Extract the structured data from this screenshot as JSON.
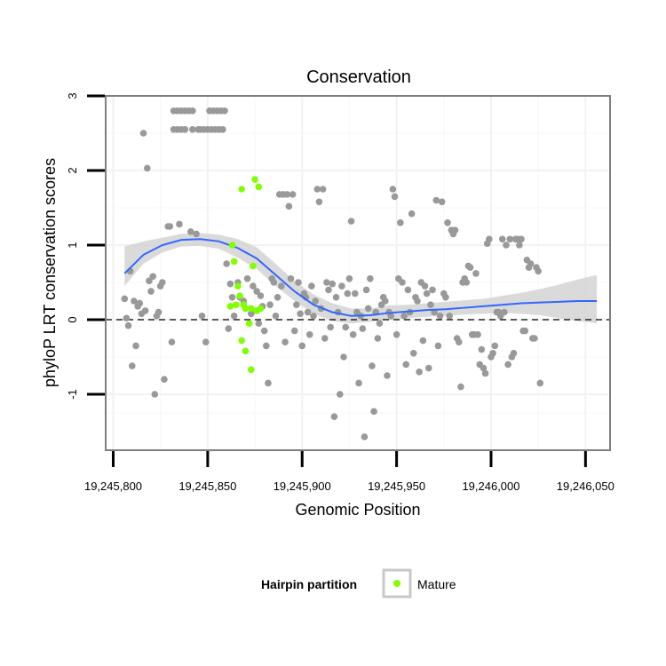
{
  "chart_data": {
    "type": "scatter",
    "title": "Conservation",
    "xlabel": "Genomic Position",
    "ylabel": "phyloP LRT conservation scores",
    "xlim": [
      19245796,
      19246063
    ],
    "ylim": [
      -1.75,
      3
    ],
    "x_ticks": [
      19245800,
      19245850,
      19245900,
      19245950,
      19246000,
      19246050
    ],
    "x_tick_labels": [
      "19,245,800",
      "19,245,850",
      "19,245,900",
      "19,245,950",
      "19,246,000",
      "19,246,050"
    ],
    "y_ticks": [
      -1,
      0,
      1,
      2,
      3
    ],
    "y_tick_labels": [
      "-1",
      "0",
      "1",
      "2",
      "3"
    ],
    "grid": true,
    "reference_line": {
      "y": 0,
      "style": "dashed",
      "color": "#000000"
    },
    "legend": {
      "title": "Hairpin partition",
      "position": "bottom",
      "entries": [
        "Mature"
      ]
    },
    "colors": {
      "other": "#999999",
      "mature": "#80ff00",
      "smooth": "#3366ff",
      "band": "#d3d3d3",
      "panel_border": "#7f7f7f"
    },
    "series": [
      {
        "name": "",
        "group": "other",
        "points": [
          [
            19245806,
            0.28
          ],
          [
            19245807,
            0.02
          ],
          [
            19245808,
            -0.08
          ],
          [
            19245809,
            0.65
          ],
          [
            19245810,
            -0.62
          ],
          [
            19245811,
            0.25
          ],
          [
            19245812,
            -0.35
          ],
          [
            19245813,
            0.18
          ],
          [
            19245814,
            0.22
          ],
          [
            19245815,
            0.08
          ],
          [
            19245816,
            2.5
          ],
          [
            19245817,
            0.12
          ],
          [
            19245818,
            2.03
          ],
          [
            19245819,
            0.52
          ],
          [
            19245820,
            0.38
          ],
          [
            19245821,
            0.58
          ],
          [
            19245822,
            -1.0
          ],
          [
            19245823,
            0.05
          ],
          [
            19245824,
            0.1
          ],
          [
            19245825,
            0.45
          ],
          [
            19245826,
            0.5
          ],
          [
            19245827,
            -0.8
          ],
          [
            19245829,
            1.25
          ],
          [
            19245830,
            1.25
          ],
          [
            19245831,
            -0.3
          ],
          [
            19245832,
            2.8
          ],
          [
            19245832,
            2.55
          ],
          [
            19245834,
            2.8
          ],
          [
            19245834,
            2.55
          ],
          [
            19245835,
            1.28
          ],
          [
            19245836,
            2.8
          ],
          [
            19245836,
            2.55
          ],
          [
            19245838,
            2.8
          ],
          [
            19245838,
            2.55
          ],
          [
            19245840,
            2.8
          ],
          [
            19245841,
            1.18
          ],
          [
            19245842,
            2.8
          ],
          [
            19245842,
            2.55
          ],
          [
            19245844,
            1.15
          ],
          [
            19245845,
            2.55
          ],
          [
            19245846,
            2.55
          ],
          [
            19245847,
            0.05
          ],
          [
            19245848,
            2.55
          ],
          [
            19245849,
            -0.3
          ],
          [
            19245850,
            2.55
          ],
          [
            19245851,
            2.8
          ],
          [
            19245852,
            2.55
          ],
          [
            19245853,
            2.8
          ],
          [
            19245854,
            2.55
          ],
          [
            19245855,
            2.8
          ],
          [
            19245856,
            2.55
          ],
          [
            19245857,
            2.8
          ],
          [
            19245858,
            2.55
          ],
          [
            19245859,
            2.8
          ],
          [
            19245860,
            0.75
          ],
          [
            19245861,
            -0.12
          ],
          [
            19245862,
            0.48
          ],
          [
            19245863,
            0.3
          ],
          [
            19245864,
            0.05
          ],
          [
            19245866,
            0.5
          ],
          [
            19245867,
            0.3
          ],
          [
            19245869,
            0.25
          ],
          [
            19245871,
            0.55
          ],
          [
            19245873,
            0.08
          ],
          [
            19245874,
            0.45
          ],
          [
            19245876,
            0.38
          ],
          [
            19245877,
            -0.05
          ],
          [
            19245878,
            0.32
          ],
          [
            19245879,
            0.18
          ],
          [
            19245880,
            -0.15
          ],
          [
            19245881,
            -0.35
          ],
          [
            19245882,
            -0.85
          ],
          [
            19245883,
            0.2
          ],
          [
            19245884,
            0.55
          ],
          [
            19245885,
            0.5
          ],
          [
            19245886,
            0.05
          ],
          [
            19245887,
            0.3
          ],
          [
            19245888,
            1.68
          ],
          [
            19245889,
            0.45
          ],
          [
            19245890,
            1.68
          ],
          [
            19245891,
            -0.3
          ],
          [
            19245892,
            1.68
          ],
          [
            19245893,
            1.52
          ],
          [
            19245894,
            0.55
          ],
          [
            19245895,
            1.68
          ],
          [
            19245896,
            -0.15
          ],
          [
            19245897,
            0.2
          ],
          [
            19245898,
            0.5
          ],
          [
            19245899,
            0.08
          ],
          [
            19245900,
            -0.35
          ],
          [
            19245901,
            0.35
          ],
          [
            19245902,
            0.3
          ],
          [
            19245903,
            0.1
          ],
          [
            19245904,
            -0.2
          ],
          [
            19245905,
            0.45
          ],
          [
            19245906,
            0.05
          ],
          [
            19245907,
            0.25
          ],
          [
            19245908,
            1.75
          ],
          [
            19245909,
            1.58
          ],
          [
            19245910,
            0.15
          ],
          [
            19245911,
            1.75
          ],
          [
            19245912,
            -0.25
          ],
          [
            19245913,
            0.5
          ],
          [
            19245914,
            0.4
          ],
          [
            19245915,
            -0.1
          ],
          [
            19245916,
            0.48
          ],
          [
            19245917,
            -1.3
          ],
          [
            19245918,
            0.3
          ],
          [
            19245919,
            0.1
          ],
          [
            19245920,
            -1.0
          ],
          [
            19245921,
            0.45
          ],
          [
            19245922,
            -0.5
          ],
          [
            19245923,
            -0.1
          ],
          [
            19245924,
            0.35
          ],
          [
            19245925,
            0.55
          ],
          [
            19245926,
            1.32
          ],
          [
            19245927,
            -0.2
          ],
          [
            19245928,
            0.35
          ],
          [
            19245929,
            0.1
          ],
          [
            19245930,
            -0.85
          ],
          [
            19245931,
            0.05
          ],
          [
            19245932,
            -0.12
          ],
          [
            19245933,
            -1.57
          ],
          [
            19245934,
            0.4
          ],
          [
            19245935,
            0.15
          ],
          [
            19245936,
            0.55
          ],
          [
            19245937,
            -0.62
          ],
          [
            19245938,
            -1.23
          ],
          [
            19245939,
            0.1
          ],
          [
            19245940,
            -0.25
          ],
          [
            19245941,
            -0.05
          ],
          [
            19245942,
            0.2
          ],
          [
            19245943,
            0.3
          ],
          [
            19245944,
            0.25
          ],
          [
            19245945,
            -0.75
          ],
          [
            19245946,
            0.1
          ],
          [
            19245947,
            0.05
          ],
          [
            19245948,
            1.75
          ],
          [
            19245949,
            1.65
          ],
          [
            19245950,
            -0.2
          ],
          [
            19245951,
            0.55
          ],
          [
            19245952,
            1.3
          ],
          [
            19245953,
            0.5
          ],
          [
            19245954,
            0.05
          ],
          [
            19245955,
            -0.6
          ],
          [
            19245956,
            0.4
          ],
          [
            19245957,
            0.1
          ],
          [
            19245958,
            1.42
          ],
          [
            19245959,
            -0.45
          ],
          [
            19245960,
            0.3
          ],
          [
            19245961,
            0.25
          ],
          [
            19245962,
            -0.7
          ],
          [
            19245963,
            0.5
          ],
          [
            19245964,
            -0.28
          ],
          [
            19245965,
            0.45
          ],
          [
            19245966,
            0.35
          ],
          [
            19245967,
            -0.65
          ],
          [
            19245968,
            0.2
          ],
          [
            19245969,
            0.4
          ],
          [
            19245970,
            0.1
          ],
          [
            19245971,
            1.6
          ],
          [
            19245972,
            -0.35
          ],
          [
            19245973,
            0.05
          ],
          [
            19245974,
            1.58
          ],
          [
            19245975,
            0.35
          ],
          [
            19245976,
            0.3
          ],
          [
            19245977,
            1.3
          ],
          [
            19245978,
            0.05
          ],
          [
            19245979,
            1.2
          ],
          [
            19245980,
            1.15
          ],
          [
            19245981,
            1.2
          ],
          [
            19245982,
            -0.25
          ],
          [
            19245983,
            -0.3
          ],
          [
            19245984,
            -0.9
          ],
          [
            19245985,
            0.5
          ],
          [
            19245986,
            0.55
          ],
          [
            19245987,
            0.5
          ],
          [
            19245988,
            0.72
          ],
          [
            19245989,
            0.7
          ],
          [
            19245990,
            -0.2
          ],
          [
            19245991,
            -0.2
          ],
          [
            19245992,
            0.62
          ],
          [
            19245993,
            -0.2
          ],
          [
            19245994,
            -0.6
          ],
          [
            19245995,
            -0.4
          ],
          [
            19245996,
            -0.65
          ],
          [
            19245997,
            -0.72
          ],
          [
            19245998,
            1.02
          ],
          [
            19245999,
            1.08
          ],
          [
            19246000,
            -0.5
          ],
          [
            19246001,
            -0.45
          ],
          [
            19246002,
            -0.35
          ],
          [
            19246003,
            0.1
          ],
          [
            19246004,
            0.1
          ],
          [
            19246005,
            0.05
          ],
          [
            19246006,
            1.08
          ],
          [
            19246007,
            0.1
          ],
          [
            19246008,
            1.0
          ],
          [
            19246009,
            -0.6
          ],
          [
            19246010,
            1.08
          ],
          [
            19246011,
            -0.5
          ],
          [
            19246012,
            -0.45
          ],
          [
            19246013,
            1.08
          ],
          [
            19246014,
            1.08
          ],
          [
            19246015,
            1.0
          ],
          [
            19246016,
            1.08
          ],
          [
            19246017,
            -0.15
          ],
          [
            19246018,
            -0.15
          ],
          [
            19246019,
            0.8
          ],
          [
            19246020,
            0.7
          ],
          [
            19246021,
            0.75
          ],
          [
            19246022,
            -0.25
          ],
          [
            19246023,
            -0.25
          ],
          [
            19246024,
            0.7
          ],
          [
            19246025,
            0.65
          ],
          [
            19246026,
            -0.85
          ]
        ]
      },
      {
        "name": "Mature",
        "group": "mature",
        "points": [
          [
            19245863,
            1.0
          ],
          [
            19245864,
            0.78
          ],
          [
            19245862,
            0.18
          ],
          [
            19245865,
            0.2
          ],
          [
            19245866,
            0.45
          ],
          [
            19245867,
            0.32
          ],
          [
            19245868,
            1.75
          ],
          [
            19245868,
            -0.28
          ],
          [
            19245869,
            0.2
          ],
          [
            19245870,
            0.15
          ],
          [
            19245870,
            -0.42
          ],
          [
            19245872,
            -0.05
          ],
          [
            19245873,
            0.15
          ],
          [
            19245874,
            0.72
          ],
          [
            19245875,
            1.88
          ],
          [
            19245876,
            0.12
          ],
          [
            19245877,
            1.78
          ],
          [
            19245878,
            0.15
          ],
          [
            19245873,
            -0.67
          ]
        ]
      }
    ],
    "smooth": {
      "points": [
        [
          19245806,
          0.62
        ],
        [
          19245816,
          0.87
        ],
        [
          19245826,
          1.0
        ],
        [
          19245836,
          1.07
        ],
        [
          19245846,
          1.08
        ],
        [
          19245856,
          1.05
        ],
        [
          19245866,
          0.96
        ],
        [
          19245876,
          0.82
        ],
        [
          19245886,
          0.6
        ],
        [
          19245896,
          0.38
        ],
        [
          19245906,
          0.2
        ],
        [
          19245916,
          0.1
        ],
        [
          19245926,
          0.05
        ],
        [
          19245936,
          0.06
        ],
        [
          19245946,
          0.09
        ],
        [
          19245956,
          0.11
        ],
        [
          19245966,
          0.13
        ],
        [
          19245976,
          0.14
        ],
        [
          19245986,
          0.16
        ],
        [
          19245996,
          0.18
        ],
        [
          19246006,
          0.2
        ],
        [
          19246016,
          0.22
        ],
        [
          19246026,
          0.23
        ],
        [
          19246036,
          0.24
        ],
        [
          19246046,
          0.25
        ],
        [
          19246056,
          0.25
        ]
      ],
      "band": [
        [
          19245806,
          0.45,
          0.98
        ],
        [
          19245816,
          0.75,
          1.05
        ],
        [
          19245826,
          0.9,
          1.1
        ],
        [
          19245836,
          0.98,
          1.15
        ],
        [
          19245846,
          0.99,
          1.16
        ],
        [
          19245856,
          0.95,
          1.14
        ],
        [
          19245866,
          0.83,
          1.08
        ],
        [
          19245876,
          0.68,
          0.97
        ],
        [
          19245886,
          0.45,
          0.75
        ],
        [
          19245896,
          0.25,
          0.52
        ],
        [
          19245906,
          0.08,
          0.34
        ],
        [
          19245916,
          -0.02,
          0.22
        ],
        [
          19245926,
          -0.05,
          0.15
        ],
        [
          19245936,
          -0.03,
          0.15
        ],
        [
          19245946,
          0.0,
          0.19
        ],
        [
          19245956,
          0.02,
          0.2
        ],
        [
          19245966,
          0.04,
          0.22
        ],
        [
          19245976,
          0.05,
          0.24
        ],
        [
          19245986,
          0.07,
          0.26
        ],
        [
          19245996,
          0.08,
          0.28
        ],
        [
          19246006,
          0.09,
          0.32
        ],
        [
          19246016,
          0.08,
          0.36
        ],
        [
          19246026,
          0.06,
          0.41
        ],
        [
          19246036,
          0.02,
          0.47
        ],
        [
          19246046,
          -0.02,
          0.54
        ],
        [
          19246056,
          -0.05,
          0.6
        ]
      ]
    }
  }
}
